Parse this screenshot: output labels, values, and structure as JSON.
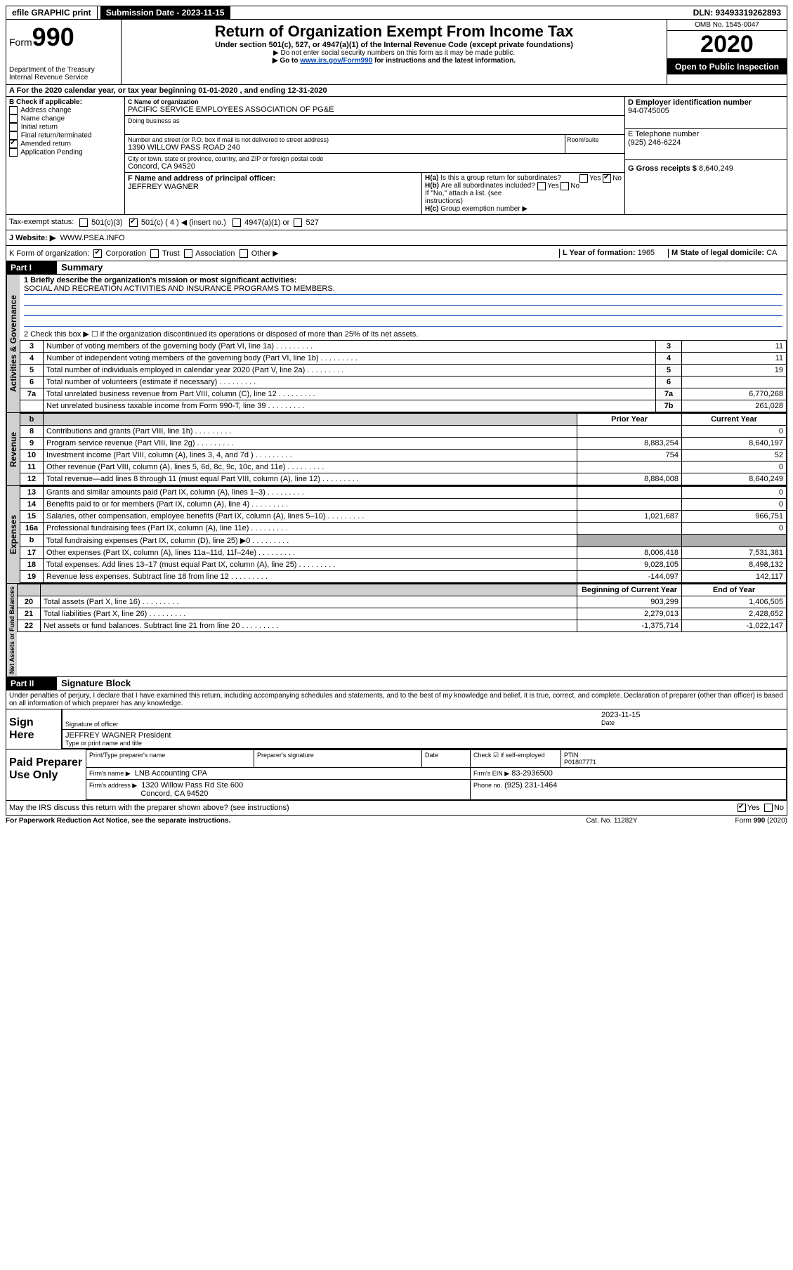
{
  "topbar": {
    "efile": "efile GRAPHIC print",
    "submission_label": "Submission Date - 2023-11-15",
    "dln_label": "DLN: 93493319262893"
  },
  "header": {
    "form_label": "Form",
    "form_number": "990",
    "dept": "Department of the Treasury",
    "irs": "Internal Revenue Service",
    "title": "Return of Organization Exempt From Income Tax",
    "subtitle": "Under section 501(c), 527, or 4947(a)(1) of the Internal Revenue Code (except private foundations)",
    "note1": "▶ Do not enter social security numbers on this form as it may be made public.",
    "note2_pre": "▶ Go to ",
    "note2_link": "www.irs.gov/Form990",
    "note2_post": " for instructions and the latest information.",
    "omb": "OMB No. 1545-0047",
    "year": "2020",
    "open": "Open to Public Inspection"
  },
  "box_a": {
    "line": "A For the 2020 calendar year, or tax year beginning 01-01-2020   , and ending 12-31-2020"
  },
  "box_b": {
    "title": "B Check if applicable:",
    "items": [
      "Address change",
      "Name change",
      "Initial return",
      "Final return/terminated",
      "Amended return",
      "Application Pending"
    ],
    "checked_idx": 4
  },
  "box_c": {
    "label_name": "C Name of organization",
    "org_name": "PACIFIC SERVICE EMPLOYEES ASSOCIATION OF PG&E",
    "dba_label": "Doing business as",
    "addr_label": "Number and street (or P.O. box if mail is not delivered to street address)",
    "room_label": "Room/suite",
    "addr": "1390 WILLOW PASS ROAD 240",
    "city_label": "City or town, state or province, country, and ZIP or foreign postal code",
    "city": "Concord, CA  94520",
    "f_label": "F Name and address of principal officer:",
    "f_name": "JEFFREY WAGNER"
  },
  "box_d": {
    "label": "D Employer identification number",
    "ein": "94-0745005",
    "e_label": "E Telephone number",
    "phone": "(925) 246-6224",
    "g_label": "G Gross receipts $",
    "gross": "8,640,249"
  },
  "box_h": {
    "a_label": "H(a)",
    "a_text": "Is this a group return for subordinates?",
    "a_yes": "Yes",
    "a_no": "No",
    "b_label": "H(b)",
    "b_text": "Are all subordinates included?",
    "b_note": "If \"No,\" attach a list. (see instructions)",
    "c_label": "H(c)",
    "c_text": "Group exemption number ▶"
  },
  "tax_status": {
    "label": "Tax-exempt status:",
    "opt1": "501(c)(3)",
    "opt2": "501(c) ( 4 ) ◀ (insert no.)",
    "opt3": "4947(a)(1) or",
    "opt4": "527"
  },
  "box_j": {
    "label": "J   Website: ▶",
    "site": "WWW.PSEA.INFO"
  },
  "box_k": {
    "label": "K Form of organization:",
    "opts": [
      "Corporation",
      "Trust",
      "Association",
      "Other ▶"
    ],
    "l_label": "L Year of formation:",
    "l_val": "1965",
    "m_label": "M State of legal domicile:",
    "m_val": "CA"
  },
  "part1": {
    "num": "Part I",
    "title": "Summary"
  },
  "summary": {
    "q1_label": "1  Briefly describe the organization's mission or most significant activities:",
    "q1_text": "SOCIAL AND RECREATION ACTIVITIES AND INSURANCE PROGRAMS TO MEMBERS.",
    "q2": "2   Check this box ▶ ☐  if the organization discontinued its operations or disposed of more than 25% of its net assets.",
    "rows_ag": [
      {
        "no": "3",
        "text": "Number of voting members of the governing body (Part VI, line 1a)",
        "cell": "3",
        "val": "11"
      },
      {
        "no": "4",
        "text": "Number of independent voting members of the governing body (Part VI, line 1b)",
        "cell": "4",
        "val": "11"
      },
      {
        "no": "5",
        "text": "Total number of individuals employed in calendar year 2020 (Part V, line 2a)",
        "cell": "5",
        "val": "19"
      },
      {
        "no": "6",
        "text": "Total number of volunteers (estimate if necessary)",
        "cell": "6",
        "val": ""
      },
      {
        "no": "7a",
        "text": "Total unrelated business revenue from Part VIII, column (C), line 12",
        "cell": "7a",
        "val": "6,770,268"
      },
      {
        "no": " ",
        "text": "Net unrelated business taxable income from Form 990-T, line 39",
        "cell": "7b",
        "val": "261,028"
      }
    ],
    "col_prior": "Prior Year",
    "col_current": "Current Year",
    "rows_rev": [
      {
        "no": "8",
        "text": "Contributions and grants (Part VIII, line 1h)",
        "prior": "",
        "cur": "0"
      },
      {
        "no": "9",
        "text": "Program service revenue (Part VIII, line 2g)",
        "prior": "8,883,254",
        "cur": "8,640,197"
      },
      {
        "no": "10",
        "text": "Investment income (Part VIII, column (A), lines 3, 4, and 7d )",
        "prior": "754",
        "cur": "52"
      },
      {
        "no": "11",
        "text": "Other revenue (Part VIII, column (A), lines 5, 6d, 8c, 9c, 10c, and 11e)",
        "prior": "",
        "cur": "0"
      },
      {
        "no": "12",
        "text": "Total revenue—add lines 8 through 11 (must equal Part VIII, column (A), line 12)",
        "prior": "8,884,008",
        "cur": "8,640,249"
      }
    ],
    "rows_exp": [
      {
        "no": "13",
        "text": "Grants and similar amounts paid (Part IX, column (A), lines 1–3)",
        "prior": "",
        "cur": "0"
      },
      {
        "no": "14",
        "text": "Benefits paid to or for members (Part IX, column (A), line 4)",
        "prior": "",
        "cur": "0"
      },
      {
        "no": "15",
        "text": "Salaries, other compensation, employee benefits (Part IX, column (A), lines 5–10)",
        "prior": "1,021,687",
        "cur": "966,751"
      },
      {
        "no": "16a",
        "text": "Professional fundraising fees (Part IX, column (A), line 11e)",
        "prior": "",
        "cur": "0"
      },
      {
        "no": "b",
        "text": "Total fundraising expenses (Part IX, column (D), line 25) ▶0",
        "prior": "GREY",
        "cur": "GREY"
      },
      {
        "no": "17",
        "text": "Other expenses (Part IX, column (A), lines 11a–11d, 11f–24e)",
        "prior": "8,006,418",
        "cur": "7,531,381"
      },
      {
        "no": "18",
        "text": "Total expenses. Add lines 13–17 (must equal Part IX, column (A), line 25)",
        "prior": "9,028,105",
        "cur": "8,498,132"
      },
      {
        "no": "19",
        "text": "Revenue less expenses. Subtract line 18 from line 12",
        "prior": "-144,097",
        "cur": "142,117"
      }
    ],
    "col_begin": "Beginning of Current Year",
    "col_end": "End of Year",
    "rows_na": [
      {
        "no": "20",
        "text": "Total assets (Part X, line 16)",
        "prior": "903,299",
        "cur": "1,406,505"
      },
      {
        "no": "21",
        "text": "Total liabilities (Part X, line 26)",
        "prior": "2,279,013",
        "cur": "2,428,652"
      },
      {
        "no": "22",
        "text": "Net assets or fund balances. Subtract line 21 from line 20",
        "prior": "-1,375,714",
        "cur": "-1,022,147"
      }
    ],
    "vlabel_ag": "Activities & Governance",
    "vlabel_rev": "Revenue",
    "vlabel_rev_b": "b",
    "vlabel_exp": "Expenses",
    "vlabel_na": "Net Assets or Fund Balances"
  },
  "part2": {
    "num": "Part II",
    "title": "Signature Block",
    "perjury": "Under penalties of perjury, I declare that I have examined this return, including accompanying schedules and statements, and to the best of my knowledge and belief, it is true, correct, and complete. Declaration of preparer (other than officer) is based on all information of which preparer has any knowledge.",
    "sign_here": "Sign Here",
    "sig_officer": "Signature of officer",
    "sig_date": "2023-11-15",
    "date_label": "Date",
    "officer_name": "JEFFREY WAGNER  President",
    "type_name": "Type or print name and title",
    "paid_label": "Paid Preparer Use Only",
    "prep_name_label": "Print/Type preparer's name",
    "prep_sig_label": "Preparer's signature",
    "check_self": "Check ☑ if self-employed",
    "ptin_label": "PTIN",
    "ptin": "P01807771",
    "firm_name_label": "Firm's name   ▶",
    "firm_name": "LNB Accounting CPA",
    "firm_ein_label": "Firm's EIN ▶",
    "firm_ein": "83-2936500",
    "firm_addr_label": "Firm's address ▶",
    "firm_addr1": "1320 Willow Pass Rd Ste 600",
    "firm_addr2": "Concord, CA  94520",
    "firm_phone_label": "Phone no.",
    "firm_phone": "(925) 231-1464",
    "discuss": "May the IRS discuss this return with the preparer shown above? (see instructions)",
    "yes": "Yes",
    "no": "No"
  },
  "footer": {
    "left": "For Paperwork Reduction Act Notice, see the separate instructions.",
    "center": "Cat. No. 11282Y",
    "right": "Form 990 (2020)"
  }
}
